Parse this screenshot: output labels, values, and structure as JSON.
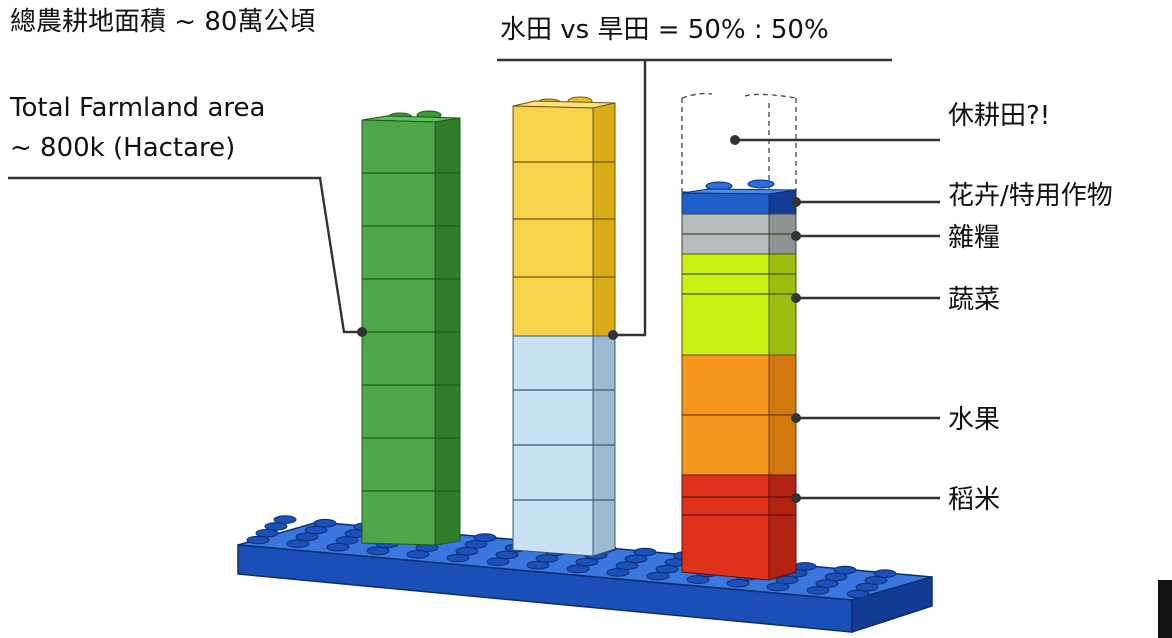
{
  "title_zh": "總農耕地面積 ~ 80萬公頃",
  "title_en_line1": "Total Farmland area",
  "title_en_line2": "~ 800k (Hactare)",
  "ratio_label": "水田 vs 旱田 = 50% : 50%",
  "column3_labels": {
    "fallow": "休耕田?!",
    "flowers": "花卉/特用作物",
    "grains": "雜糧",
    "vegetables": "蔬菜",
    "fruit": "水果",
    "rice": "稻米"
  },
  "colors": {
    "green": "#4ea84a",
    "yellow": "#f7d24b",
    "light_blue": "#c8e2f3",
    "blue_top": "#1f5fc8",
    "gray": "#b7bcbd",
    "lime": "#c8f212",
    "orange": "#f7961d",
    "red": "#e0311a",
    "base_plate": "#1a4fb8"
  }
}
